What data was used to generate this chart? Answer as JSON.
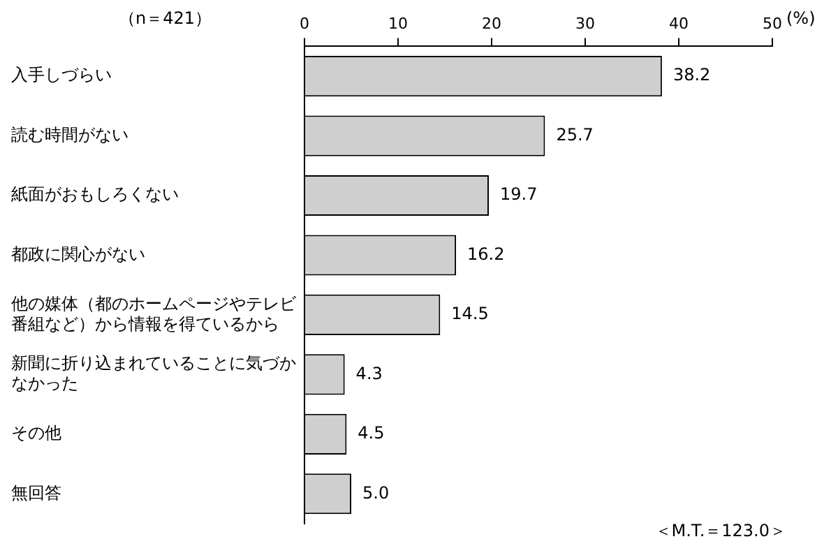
{
  "chart_data": {
    "type": "bar",
    "orientation": "horizontal",
    "categories": [
      "入手しづらい",
      "読む時間がない",
      "紙面がおもしろくない",
      "都政に関心がない",
      "他の媒体（都のホームページやテレビ番組など）から情報を得ているから",
      "新聞に折り込まれていることに気づかなかった",
      "その他",
      "無回答"
    ],
    "values": [
      38.2,
      25.7,
      19.7,
      16.2,
      14.5,
      4.3,
      4.5,
      5.0
    ],
    "value_labels": [
      "38.2",
      "25.7",
      "19.7",
      "16.2",
      "14.5",
      "4.3",
      "4.5",
      "5.0"
    ],
    "color": "#cfcfcf",
    "xlim": [
      0,
      50
    ],
    "xticks": [
      0,
      10,
      20,
      30,
      40,
      50
    ],
    "xlabel": "(%)",
    "grid": false,
    "legend": false,
    "annotations": [
      "（n＝421）",
      "＜M.T.＝123.0＞"
    ]
  }
}
